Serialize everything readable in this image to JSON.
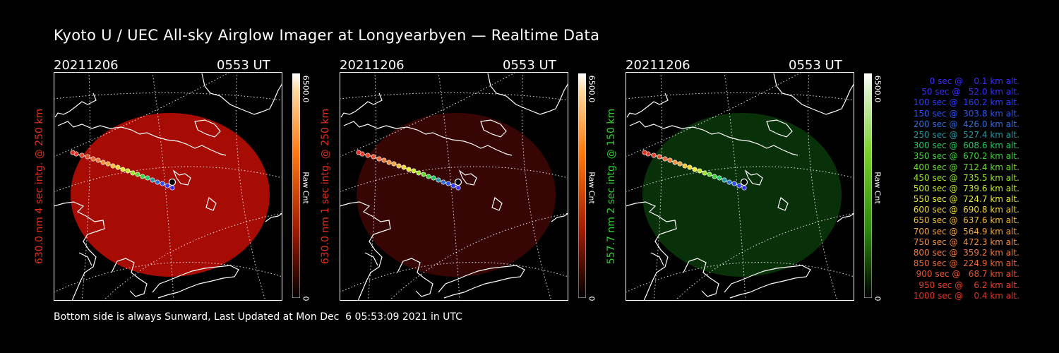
{
  "title": "Kyoto U / UEC All-sky Airglow Imager at Longyearbyen — Realtime Data",
  "panels": [
    {
      "date": "20211206",
      "time": "0553 UT",
      "ylabel": "630.0 nm 4 sec intg. @ 250 km",
      "ylabel_color": "#e0301e",
      "cbar_max": "6500.0",
      "cbar_min": "0",
      "cbar_unit": "Raw Cnt",
      "colormap": "red",
      "glow_color": "#b30c04",
      "glow_opacity": 0.93
    },
    {
      "date": "20211206",
      "time": "0553 UT",
      "ylabel": "630.0 nm 1 sec intg. @ 250 km",
      "ylabel_color": "#e0301e",
      "cbar_max": "6500.0",
      "cbar_min": "0",
      "cbar_unit": "Raw Cnt",
      "colormap": "red",
      "glow_color": "#3a0503",
      "glow_opacity": 0.95
    },
    {
      "date": "20211206",
      "time": "0553 UT",
      "ylabel": "557.7 nm 2 sec intg. @ 150 km",
      "ylabel_color": "#2fd02f",
      "cbar_max": "6500.0",
      "cbar_min": "0",
      "cbar_unit": "Raw Cnt",
      "colormap": "green",
      "glow_color": "#0a3a0a",
      "glow_opacity": 0.85
    }
  ],
  "trajectory_legend": [
    {
      "text": "   0 sec @    0.1 km alt.",
      "color": "#3a2cff"
    },
    {
      "text": "  50 sec @   52.0 km alt.",
      "color": "#3a2cff"
    },
    {
      "text": " 100 sec @  160.2 km alt.",
      "color": "#2f3cff"
    },
    {
      "text": " 150 sec @  303.8 km alt.",
      "color": "#2b55f0"
    },
    {
      "text": " 200 sec @  426.0 km alt.",
      "color": "#2c6fe0"
    },
    {
      "text": " 250 sec @  527.4 km alt.",
      "color": "#1f9aa5"
    },
    {
      "text": " 300 sec @  608.6 km alt.",
      "color": "#22c766"
    },
    {
      "text": " 350 sec @  670.2 km alt.",
      "color": "#3ad63a"
    },
    {
      "text": " 400 sec @  712.4 km alt.",
      "color": "#69dd2c"
    },
    {
      "text": " 450 sec @  735.5 km alt.",
      "color": "#9de52a"
    },
    {
      "text": " 500 sec @  739.6 km alt.",
      "color": "#c8ea2a"
    },
    {
      "text": " 550 sec @  724.7 km alt.",
      "color": "#ecec2e"
    },
    {
      "text": " 600 sec @  690.8 km alt.",
      "color": "#f4d82e"
    },
    {
      "text": " 650 sec @  637.6 km alt.",
      "color": "#f4bd34"
    },
    {
      "text": " 700 sec @  564.9 km alt.",
      "color": "#f4a53a"
    },
    {
      "text": " 750 sec @  472.3 km alt.",
      "color": "#f48f3c"
    },
    {
      "text": " 800 sec @  359.2 km alt.",
      "color": "#f27b3a"
    },
    {
      "text": " 850 sec @  224.9 km alt.",
      "color": "#ee6734"
    },
    {
      "text": " 900 sec @   68.7 km alt.",
      "color": "#ea532e"
    },
    {
      "text": " 950 sec @    6.2 km alt.",
      "color": "#e64228"
    },
    {
      "text": "1000 sec @    0.4 km alt.",
      "color": "#e33222"
    }
  ],
  "footer": "Bottom side is always Sunward, Last Updated at Mon Dec  6 05:53:09 2021 in UTC"
}
